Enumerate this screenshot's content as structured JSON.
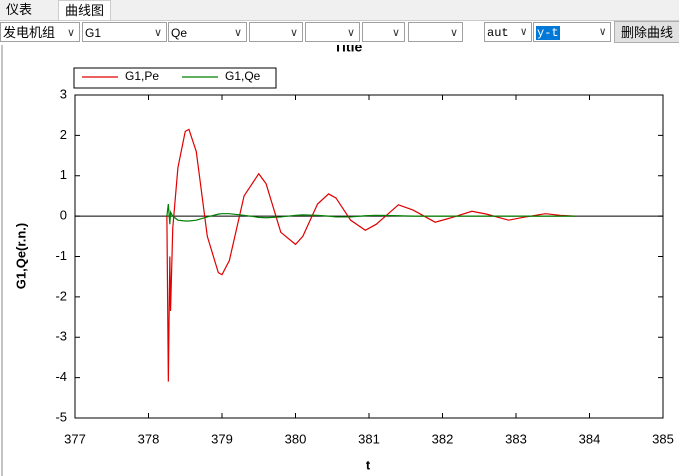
{
  "tabs": [
    "仪表",
    "曲线图"
  ],
  "toolbar": {
    "selects": [
      "发电机组",
      "G1",
      "Qe"
    ],
    "mode_selects": [
      "aut",
      "y-t"
    ],
    "button": "删除曲线"
  },
  "chart_data": {
    "type": "line",
    "title": "Title",
    "x_label": "t",
    "y_label": "G1,Qe(r.n.)",
    "x": [
      378.25,
      378.27,
      378.29,
      378.3,
      378.33,
      378.4,
      378.5,
      378.55,
      378.65,
      378.8,
      378.95,
      379.0,
      379.1,
      379.3,
      379.5,
      379.6,
      379.8,
      380.0,
      380.1,
      380.3,
      380.45,
      380.55,
      380.75,
      380.95,
      381.1,
      381.4,
      381.6,
      381.9,
      382.1,
      382.4,
      382.6,
      382.9,
      383.1,
      383.4,
      383.6,
      383.8
    ],
    "series": [
      {
        "name": "G1,Pe",
        "color": "#e00000",
        "values": [
          0,
          -4.1,
          -1.0,
          -2.35,
          -0.3,
          1.2,
          2.1,
          2.15,
          1.6,
          -0.5,
          -1.4,
          -1.45,
          -1.1,
          0.5,
          1.05,
          0.8,
          -0.4,
          -0.7,
          -0.5,
          0.3,
          0.55,
          0.45,
          -0.1,
          -0.35,
          -0.2,
          0.28,
          0.15,
          -0.15,
          -0.05,
          0.12,
          0.05,
          -0.1,
          -0.03,
          0.06,
          0.02,
          0
        ]
      },
      {
        "name": "G1,Qe",
        "color": "#008000",
        "values": [
          0,
          0.3,
          -0.2,
          0.1,
          0.0,
          -0.1,
          -0.12,
          -0.12,
          -0.1,
          -0.02,
          0.05,
          0.06,
          0.06,
          0.02,
          -0.03,
          -0.04,
          -0.02,
          0.02,
          0.03,
          0.02,
          0.0,
          -0.02,
          -0.02,
          0.01,
          0.02,
          0.01,
          0,
          0,
          0,
          0,
          0,
          0,
          0,
          0,
          0,
          0
        ]
      }
    ],
    "xlim": [
      377,
      385
    ],
    "xticks": [
      377,
      378,
      379,
      380,
      381,
      382,
      383,
      384,
      385
    ],
    "ylim": [
      -5,
      3
    ],
    "yticks": [
      -5,
      -4,
      -3,
      -2,
      -1,
      0,
      1,
      2,
      3
    ],
    "zero_line": true
  }
}
